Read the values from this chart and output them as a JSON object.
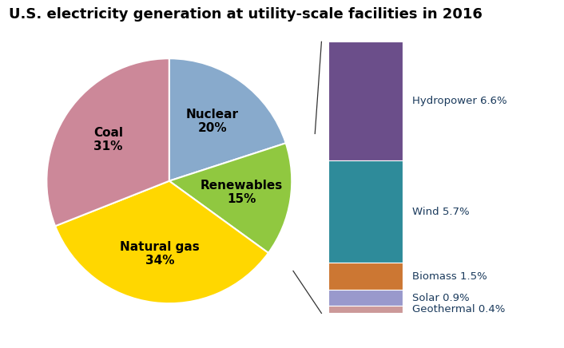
{
  "title": "U.S. electricity generation at utility-scale facilities in 2016",
  "main_slices": [
    {
      "label": "Nuclear\n20%",
      "value": 20,
      "color": "#88AACC"
    },
    {
      "label": "Renewables\n15%",
      "value": 15,
      "color": "#90C840"
    },
    {
      "label": "Natural gas\n34%",
      "value": 34,
      "color": "#FFD700"
    },
    {
      "label": "Coal\n31%",
      "value": 31,
      "color": "#CC8899"
    }
  ],
  "renewables_breakdown": [
    {
      "label": "Hydropower 6.6%",
      "value": 6.6,
      "color": "#6B4E8A"
    },
    {
      "label": "Wind 5.7%",
      "value": 5.7,
      "color": "#2E8B9A"
    },
    {
      "label": "Biomass 1.5%",
      "value": 1.5,
      "color": "#CC7733"
    },
    {
      "label": "Solar 0.9%",
      "value": 0.9,
      "color": "#9999CC"
    },
    {
      "label": "Geothermal 0.4%",
      "value": 0.4,
      "color": "#CC9999"
    }
  ],
  "title_fontsize": 13,
  "label_fontsize": 11,
  "background_color": "#FFFFFF",
  "label_color": "#1a3a5c"
}
